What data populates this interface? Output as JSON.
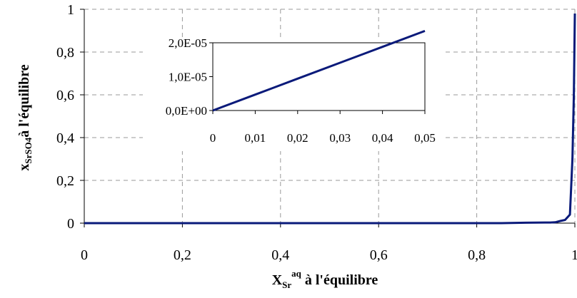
{
  "chart_data": [
    {
      "type": "line",
      "title": "",
      "xlabel": {
        "main": "X",
        "sub": "Sr",
        "sup": "aq",
        "rest": " à l'équilibre"
      },
      "ylabel": {
        "main": "x",
        "sub": "SrSO4",
        "rest": "à l'équilibre"
      },
      "xlim": [
        0,
        1
      ],
      "ylim": [
        0,
        1
      ],
      "xticks": [
        0,
        0.2,
        0.4,
        0.6,
        0.8,
        1
      ],
      "xtick_labels": [
        "0",
        "0,2",
        "0,4",
        "0,6",
        "0,8",
        "1"
      ],
      "yticks": [
        0,
        0.2,
        0.4,
        0.6,
        0.8,
        1
      ],
      "ytick_labels": [
        "0",
        "0,2",
        "0,4",
        "0,6",
        "0,8",
        "1"
      ],
      "grid": true,
      "color": "#0a1a7a",
      "series": [
        {
          "x": [
            0,
            0.1,
            0.2,
            0.3,
            0.4,
            0.5,
            0.6,
            0.7,
            0.8,
            0.85,
            0.9,
            0.95,
            0.96,
            0.97,
            0.98,
            0.99,
            0.995,
            0.998,
            1
          ],
          "y": [
            0,
            0,
            0,
            0,
            0,
            0,
            0,
            0,
            0,
            0,
            0.002,
            0.003,
            0.004,
            0.01,
            0.015,
            0.04,
            0.3,
            0.6,
            0.98
          ]
        }
      ]
    },
    {
      "type": "line",
      "title": "",
      "xlabel": "",
      "ylabel": "",
      "xlim": [
        0,
        0.05
      ],
      "ylim": [
        0,
        2e-05
      ],
      "xticks": [
        0,
        0.01,
        0.02,
        0.03,
        0.04,
        0.05
      ],
      "xtick_labels": [
        "0",
        "0,01",
        "0,02",
        "0,03",
        "0,04",
        "0,05"
      ],
      "yticks": [
        0,
        1e-05,
        2e-05
      ],
      "ytick_labels": [
        "0,0E+00",
        "1,0E-05",
        "2,0E-05"
      ],
      "grid": false,
      "color": "#0a1a7a",
      "series": [
        {
          "x": [
            0,
            0.01,
            0.02,
            0.03,
            0.04,
            0.05
          ],
          "y": [
            0,
            4.7e-06,
            9.4e-06,
            1.41e-05,
            1.88e-05,
            2.35e-05
          ]
        }
      ]
    }
  ]
}
